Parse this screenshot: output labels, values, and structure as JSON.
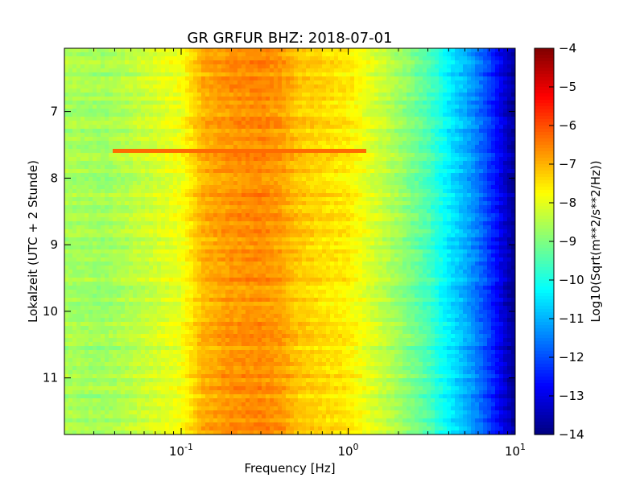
{
  "chart_data": {
    "type": "heatmap",
    "title": "GR GRFUR BHZ: 2018-07-01",
    "xlabel": "Frequency [Hz]",
    "ylabel": "Lokalzeit (UTC + 2 Stunde)",
    "x_scale": "log",
    "xlim": [
      0.02,
      10
    ],
    "ylim": [
      11.85,
      6.05
    ],
    "y_inverted": true,
    "x_ticks": [
      {
        "value": 0.1,
        "base": "10",
        "exp": "-1"
      },
      {
        "value": 1,
        "base": "10",
        "exp": "0"
      },
      {
        "value": 10,
        "base": "10",
        "exp": "1"
      }
    ],
    "y_ticks": [
      {
        "value": 7,
        "label": "7"
      },
      {
        "value": 8,
        "label": "8"
      },
      {
        "value": 9,
        "label": "9"
      },
      {
        "value": 10,
        "label": "10"
      },
      {
        "value": 11,
        "label": "11"
      }
    ],
    "colorbar": {
      "label": "Log10(Sqrt(m**2/s**2/Hz))",
      "colormap": "jet",
      "range": [
        -14,
        -4
      ],
      "ticks": [
        {
          "value": -4,
          "label": "−4"
        },
        {
          "value": -5,
          "label": "−5"
        },
        {
          "value": -6,
          "label": "−6"
        },
        {
          "value": -7,
          "label": "−7"
        },
        {
          "value": -8,
          "label": "−8"
        },
        {
          "value": -9,
          "label": "−9"
        },
        {
          "value": -10,
          "label": "−10"
        },
        {
          "value": -11,
          "label": "−11"
        },
        {
          "value": -12,
          "label": "−12"
        },
        {
          "value": -13,
          "label": "−13"
        },
        {
          "value": -14,
          "label": "−14"
        }
      ]
    },
    "spectrum_profile": {
      "freq_hz": [
        0.02,
        0.035,
        0.06,
        0.1,
        0.135,
        0.2,
        0.3,
        0.4,
        0.5,
        0.7,
        1.0,
        1.3,
        2.0,
        3.0,
        4.0,
        5.0,
        6.0,
        7.0,
        8.0,
        9.0,
        10.0
      ],
      "log10_amplitude": [
        -8.6,
        -8.7,
        -8.3,
        -7.9,
        -7.0,
        -6.7,
        -6.6,
        -6.8,
        -7.2,
        -7.4,
        -7.6,
        -8.0,
        -8.7,
        -9.5,
        -10.4,
        -11.0,
        -11.6,
        -12.2,
        -12.8,
        -13.4,
        -13.8
      ]
    },
    "events": [
      {
        "time_h": 7.6,
        "freq_range_hz": [
          0.04,
          1.3
        ],
        "log10_amplitude": -6.3
      }
    ]
  }
}
